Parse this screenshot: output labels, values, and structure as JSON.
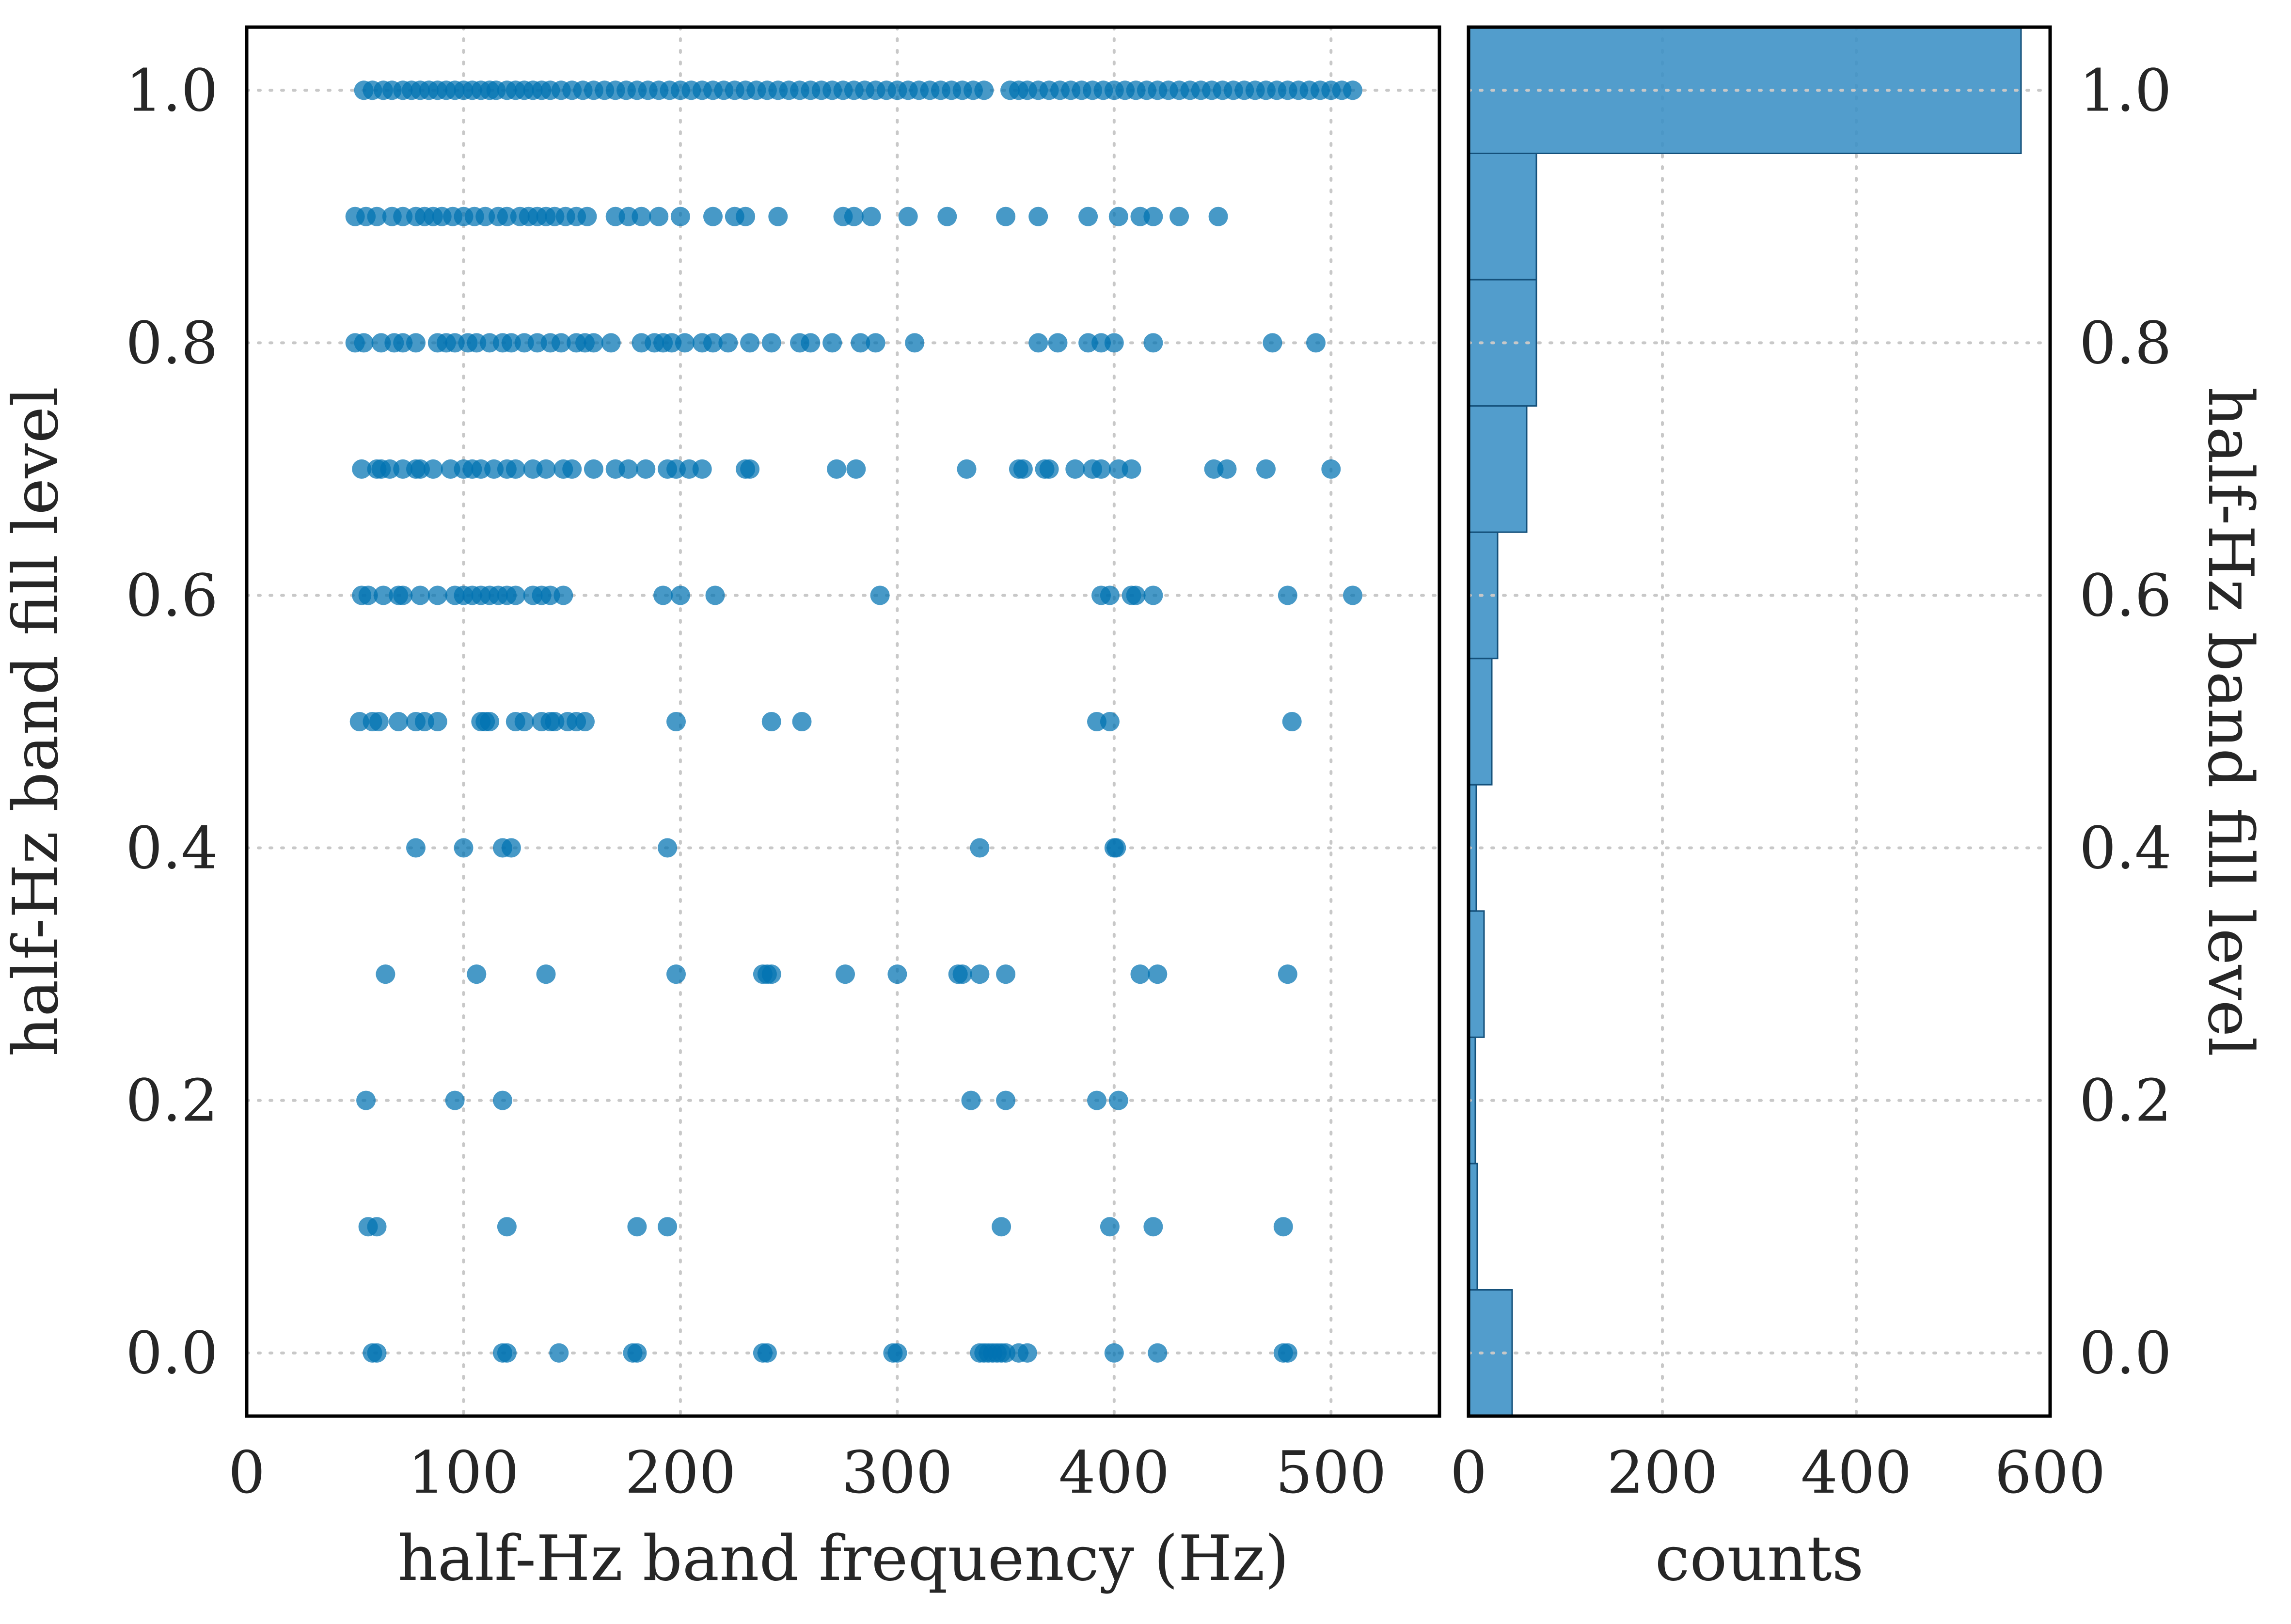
{
  "colors": {
    "points": "#0072b2",
    "bars": "#3a8fc5",
    "bar_edge": "#14507a",
    "frame": "#000000",
    "grid": "#c8c8c8",
    "text": "#262626"
  },
  "chart_data": [
    {
      "type": "scatter",
      "xlabel": "half-Hz band frequency (Hz)",
      "ylabel": "half-Hz band fill level",
      "xlim": [
        0,
        550
      ],
      "ylim": [
        -0.05,
        1.05
      ],
      "grid": true,
      "xticks": [
        {
          "v": 0,
          "label": "0"
        },
        {
          "v": 100,
          "label": "100"
        },
        {
          "v": 200,
          "label": "200"
        },
        {
          "v": 300,
          "label": "300"
        },
        {
          "v": 400,
          "label": "400"
        },
        {
          "v": 500,
          "label": "500"
        }
      ],
      "yticks": [
        {
          "v": 0,
          "label": "0.0"
        },
        {
          "v": 0.2,
          "label": "0.2"
        },
        {
          "v": 0.4,
          "label": "0.4"
        },
        {
          "v": 0.6,
          "label": "0.6"
        },
        {
          "v": 0.8,
          "label": "0.8"
        },
        {
          "v": 1.0,
          "label": "1.0"
        }
      ],
      "rows": [
        {
          "y": 1.0,
          "x": [
            54,
            58,
            63,
            67,
            72,
            76,
            80,
            84,
            88,
            92,
            96,
            100,
            104,
            108,
            112,
            115,
            120,
            124,
            128,
            132,
            136,
            140,
            145,
            150,
            155,
            160,
            165,
            170,
            175,
            180,
            185,
            190,
            195,
            200,
            205,
            210,
            215,
            220,
            225,
            230,
            235,
            240,
            245,
            250,
            255,
            260,
            265,
            270,
            275,
            280,
            285,
            290,
            295,
            300,
            305,
            310,
            315,
            320,
            325,
            330,
            335,
            340,
            352,
            356,
            360,
            365,
            370,
            375,
            380,
            385,
            390,
            395,
            400,
            405,
            410,
            415,
            420,
            425,
            430,
            435,
            440,
            445,
            450,
            455,
            460,
            465,
            470,
            475,
            480,
            485,
            490,
            495,
            500,
            505,
            510
          ]
        },
        {
          "y": 0.9,
          "x": [
            50,
            55,
            60,
            67,
            72,
            78,
            82,
            86,
            90,
            95,
            100,
            105,
            110,
            116,
            120,
            126,
            130,
            134,
            138,
            142,
            147,
            152,
            157,
            170,
            176,
            182,
            190,
            200,
            215,
            225,
            230,
            245,
            275,
            280,
            288,
            305,
            323,
            350,
            365,
            388,
            402,
            412,
            418,
            430,
            448
          ]
        },
        {
          "y": 0.8,
          "x": [
            50,
            54,
            62,
            68,
            72,
            78,
            88,
            92,
            96,
            102,
            106,
            112,
            118,
            122,
            128,
            134,
            140,
            145,
            152,
            156,
            160,
            168,
            182,
            188,
            192,
            196,
            202,
            210,
            215,
            222,
            232,
            242,
            255,
            260,
            270,
            283,
            290,
            308,
            365,
            374,
            388,
            394,
            400,
            418,
            473,
            493
          ]
        },
        {
          "y": 0.7,
          "x": [
            53,
            60,
            62,
            66,
            72,
            78,
            80,
            86,
            94,
            100,
            104,
            108,
            114,
            120,
            124,
            132,
            138,
            146,
            150,
            160,
            170,
            176,
            184,
            194,
            198,
            204,
            210,
            230,
            232,
            272,
            281,
            332,
            356,
            358,
            368,
            370,
            382,
            390,
            394,
            402,
            408,
            446,
            452,
            470,
            500
          ]
        },
        {
          "y": 0.6,
          "x": [
            53,
            56,
            63,
            70,
            72,
            80,
            88,
            96,
            100,
            104,
            108,
            112,
            116,
            120,
            124,
            132,
            136,
            140,
            146,
            192,
            200,
            216,
            292,
            394,
            398,
            408,
            410,
            418,
            480,
            510
          ]
        },
        {
          "y": 0.5,
          "x": [
            52,
            58,
            61,
            70,
            78,
            82,
            88,
            108,
            110,
            112,
            124,
            128,
            136,
            140,
            142,
            148,
            152,
            156,
            198,
            242,
            256,
            392,
            398,
            482
          ]
        },
        {
          "y": 0.4,
          "x": [
            78,
            100,
            118,
            122,
            194,
            338,
            400,
            401
          ]
        },
        {
          "y": 0.3,
          "x": [
            64,
            106,
            138,
            198,
            238,
            240,
            242,
            276,
            300,
            328,
            330,
            338,
            350,
            412,
            420,
            480
          ]
        },
        {
          "y": 0.2,
          "x": [
            55,
            96,
            118,
            334,
            350,
            392,
            402
          ]
        },
        {
          "y": 0.1,
          "x": [
            56,
            60,
            120,
            180,
            194,
            348,
            398,
            418,
            478
          ]
        },
        {
          "y": 0.0,
          "x": [
            58,
            60,
            118,
            120,
            144,
            178,
            180,
            238,
            240,
            298,
            300,
            338,
            340,
            342,
            344,
            346,
            348,
            350,
            356,
            360,
            400,
            420,
            478,
            480
          ]
        }
      ]
    },
    {
      "type": "bar",
      "orientation": "horizontal",
      "xlabel": "counts",
      "xlim": [
        0,
        600
      ],
      "ylim": [
        -0.05,
        1.05
      ],
      "ylabel": "half-Hz band fill level",
      "xticks": [
        {
          "v": 0,
          "label": "0"
        },
        {
          "v": 200,
          "label": "200"
        },
        {
          "v": 400,
          "label": "400"
        },
        {
          "v": 600,
          "label": "600"
        }
      ],
      "yticks": [
        {
          "v": 0,
          "label": "0.0"
        },
        {
          "v": 0.2,
          "label": "0.2"
        },
        {
          "v": 0.4,
          "label": "0.4"
        },
        {
          "v": 0.6,
          "label": "0.6"
        },
        {
          "v": 0.8,
          "label": "0.8"
        },
        {
          "v": 1.0,
          "label": "1.0"
        }
      ],
      "bins": [
        {
          "from": -0.05,
          "to": 0.05,
          "count": 45
        },
        {
          "from": 0.05,
          "to": 0.15,
          "count": 9
        },
        {
          "from": 0.15,
          "to": 0.25,
          "count": 7
        },
        {
          "from": 0.25,
          "to": 0.35,
          "count": 16
        },
        {
          "from": 0.35,
          "to": 0.45,
          "count": 8
        },
        {
          "from": 0.45,
          "to": 0.55,
          "count": 24
        },
        {
          "from": 0.55,
          "to": 0.65,
          "count": 30
        },
        {
          "from": 0.65,
          "to": 0.75,
          "count": 60
        },
        {
          "from": 0.75,
          "to": 0.85,
          "count": 70
        },
        {
          "from": 0.85,
          "to": 0.95,
          "count": 70
        },
        {
          "from": 0.95,
          "to": 1.05,
          "count": 570
        }
      ]
    }
  ]
}
